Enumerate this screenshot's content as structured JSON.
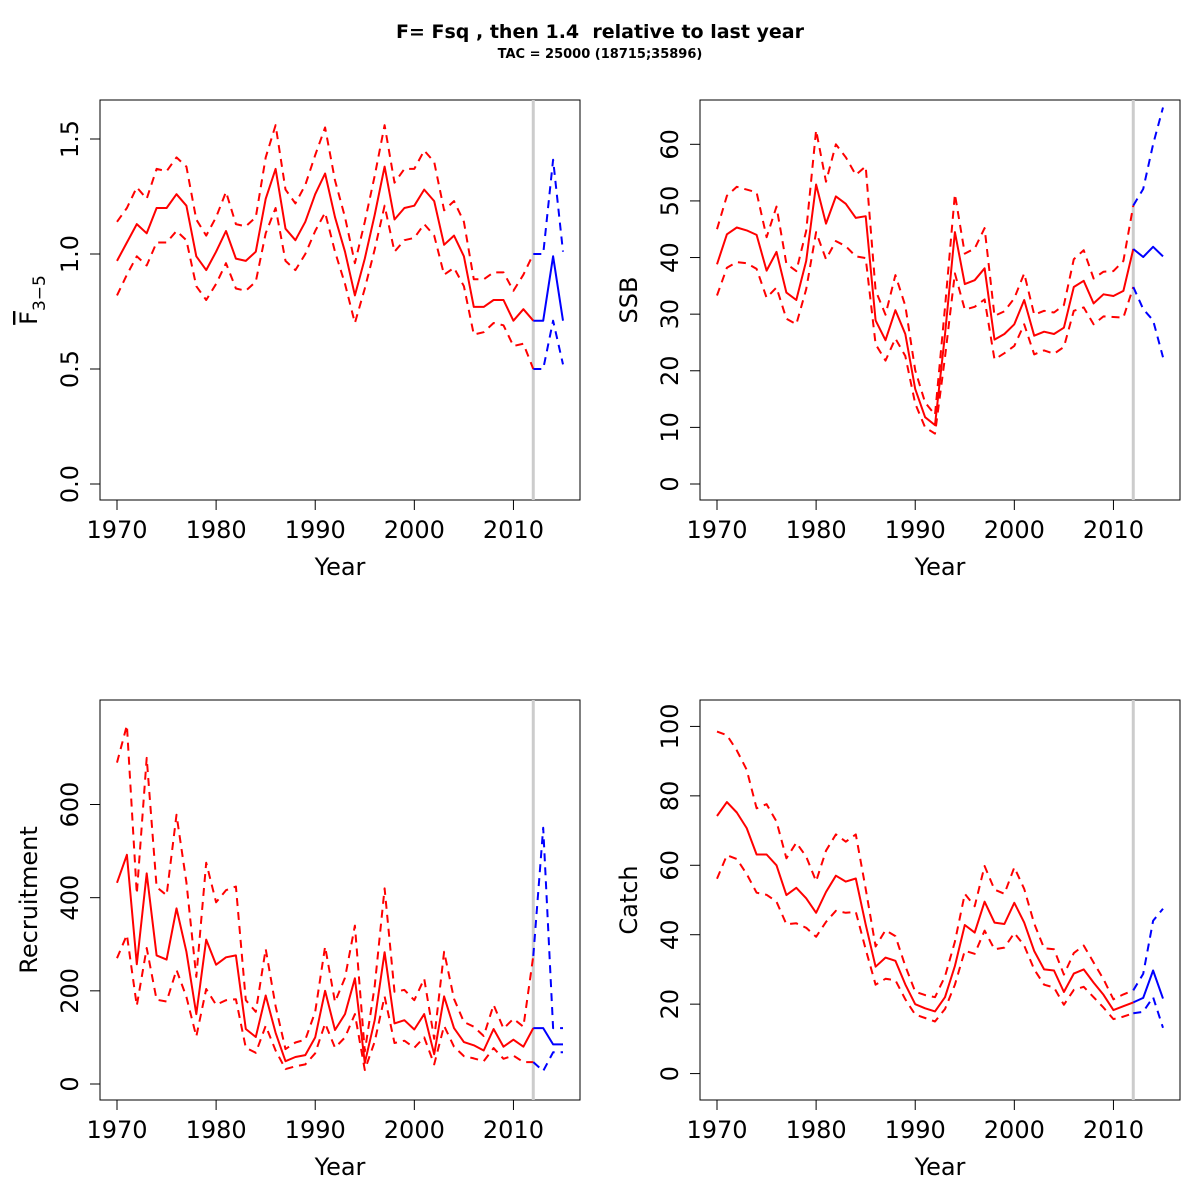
{
  "page": {
    "title": "F= Fsq , then 1.4  relative to last year",
    "subtitle": "TAC = 25000 (18715;35896)"
  },
  "style": {
    "historical_color": "#ff0000",
    "projection_color": "#0000ff",
    "reference_line_color": "#cccccc"
  },
  "chart_data": [
    {
      "type": "line",
      "panel": "top-left",
      "xlabel": "Year",
      "ylabel": "F̄3−5",
      "ylabel_main": "F",
      "ylabel_sub": "3−5",
      "xlim": [
        1970,
        2015
      ],
      "ylim": [
        0,
        1.6
      ],
      "x_ticks": [
        1970,
        1980,
        1990,
        2000,
        2010
      ],
      "x_tick_labels": [
        "1970",
        "1980",
        "1990",
        "2000",
        "2010"
      ],
      "y_ticks": [
        0,
        0.5,
        1.0,
        1.5
      ],
      "y_tick_labels": [
        "0.0",
        "0.5",
        "1.0",
        "1.5"
      ],
      "reference_year": 2012,
      "historical": {
        "x": [
          1970,
          1971,
          1972,
          1973,
          1974,
          1975,
          1976,
          1977,
          1978,
          1979,
          1980,
          1981,
          1982,
          1983,
          1984,
          1985,
          1986,
          1987,
          1988,
          1989,
          1990,
          1991,
          1992,
          1993,
          1994,
          1995,
          1996,
          1997,
          1998,
          1999,
          2000,
          2001,
          2002,
          2003,
          2004,
          2005,
          2006,
          2007,
          2008,
          2009,
          2010,
          2011,
          2012
        ],
        "estimate": [
          0.97,
          1.05,
          1.13,
          1.09,
          1.2,
          1.2,
          1.26,
          1.21,
          0.99,
          0.93,
          1.01,
          1.1,
          0.98,
          0.97,
          1.01,
          1.24,
          1.37,
          1.11,
          1.06,
          1.14,
          1.26,
          1.35,
          1.16,
          1.01,
          0.82,
          0.98,
          1.17,
          1.38,
          1.15,
          1.2,
          1.21,
          1.28,
          1.23,
          1.04,
          1.08,
          0.99,
          0.77,
          0.77,
          0.8,
          0.8,
          0.71,
          0.76,
          0.71
        ],
        "upper": [
          1.14,
          1.2,
          1.29,
          1.24,
          1.37,
          1.36,
          1.42,
          1.38,
          1.15,
          1.08,
          1.16,
          1.27,
          1.13,
          1.12,
          1.16,
          1.42,
          1.56,
          1.28,
          1.22,
          1.3,
          1.43,
          1.55,
          1.32,
          1.16,
          0.96,
          1.14,
          1.34,
          1.56,
          1.31,
          1.37,
          1.37,
          1.45,
          1.4,
          1.19,
          1.23,
          1.14,
          0.89,
          0.89,
          0.92,
          0.92,
          0.84,
          0.91,
          1.0
        ],
        "lower": [
          0.82,
          0.91,
          0.99,
          0.95,
          1.05,
          1.05,
          1.1,
          1.06,
          0.86,
          0.8,
          0.87,
          0.96,
          0.85,
          0.84,
          0.88,
          1.09,
          1.2,
          0.97,
          0.93,
          1.0,
          1.1,
          1.18,
          1.01,
          0.87,
          0.7,
          0.85,
          1.02,
          1.21,
          1.01,
          1.06,
          1.07,
          1.13,
          1.08,
          0.91,
          0.94,
          0.86,
          0.65,
          0.66,
          0.7,
          0.69,
          0.6,
          0.61,
          0.5
        ]
      },
      "projection": {
        "x": [
          2012,
          2013,
          2014,
          2015
        ],
        "estimate": [
          0.71,
          0.71,
          0.99,
          0.71
        ],
        "upper": [
          1.0,
          1.0,
          1.41,
          1.01
        ],
        "lower": [
          0.5,
          0.5,
          0.71,
          0.52
        ]
      }
    },
    {
      "type": "line",
      "panel": "top-right",
      "xlabel": "Year",
      "ylabel": "SSB",
      "xlim": [
        1970,
        2015
      ],
      "ylim": [
        0,
        65
      ],
      "x_ticks": [
        1970,
        1980,
        1990,
        2000,
        2010
      ],
      "x_tick_labels": [
        "1970",
        "1980",
        "1990",
        "2000",
        "2010"
      ],
      "y_ticks": [
        0,
        10,
        20,
        30,
        40,
        50,
        60
      ],
      "y_tick_labels": [
        "0",
        "10",
        "20",
        "30",
        "40",
        "50",
        "60"
      ],
      "reference_year": 2012,
      "historical": {
        "x": [
          1970,
          1971,
          1972,
          1973,
          1974,
          1975,
          1976,
          1977,
          1978,
          1979,
          1980,
          1981,
          1982,
          1983,
          1984,
          1985,
          1986,
          1987,
          1988,
          1989,
          1990,
          1991,
          1992,
          1993,
          1994,
          1995,
          1996,
          1997,
          1998,
          1999,
          2000,
          2001,
          2002,
          2003,
          2004,
          2005,
          2006,
          2007,
          2008,
          2009,
          2010,
          2011,
          2012
        ],
        "estimate": [
          38.8,
          44.1,
          45.3,
          44.8,
          44.0,
          37.7,
          41.0,
          33.8,
          32.5,
          39.4,
          52.9,
          46.0,
          50.8,
          49.5,
          47.0,
          47.3,
          28.9,
          25.4,
          30.7,
          26.5,
          16.8,
          11.8,
          10.4,
          26.4,
          44.5,
          35.3,
          36.0,
          38.1,
          25.5,
          26.5,
          28.2,
          32.5,
          26.2,
          26.9,
          26.5,
          27.6,
          34.8,
          35.9,
          31.9,
          33.5,
          33.2,
          34.1,
          41.5
        ],
        "upper": [
          45.0,
          50.9,
          52.5,
          52.0,
          51.5,
          43.6,
          49.0,
          38.9,
          37.6,
          44.7,
          62.5,
          53.4,
          60.0,
          57.7,
          54.6,
          56.1,
          34.2,
          29.9,
          36.9,
          31.5,
          20.1,
          14.4,
          12.2,
          31.2,
          51.2,
          40.7,
          41.6,
          45.2,
          29.7,
          30.5,
          32.8,
          37.2,
          29.9,
          30.6,
          30.3,
          31.6,
          39.7,
          41.3,
          36.3,
          37.5,
          37.6,
          39.4,
          49.2
        ],
        "lower": [
          33.3,
          38.2,
          39.2,
          39.0,
          38.0,
          32.9,
          34.7,
          29.2,
          28.2,
          34.4,
          44.5,
          39.7,
          42.9,
          42.0,
          40.2,
          39.9,
          24.7,
          21.8,
          25.7,
          22.6,
          14.2,
          10.0,
          8.9,
          22.4,
          37.2,
          30.8,
          31.3,
          32.6,
          22.0,
          23.1,
          24.4,
          28.2,
          22.9,
          23.6,
          23.0,
          24.2,
          30.6,
          31.2,
          28.2,
          29.6,
          29.5,
          29.4,
          34.8
        ]
      },
      "projection": {
        "x": [
          2012,
          2013,
          2014,
          2015
        ],
        "estimate": [
          41.5,
          40.1,
          41.9,
          40.2
        ],
        "upper": [
          49.2,
          52.1,
          60.0,
          66.5
        ],
        "lower": [
          34.8,
          30.9,
          28.9,
          22.4
        ]
      }
    },
    {
      "type": "line",
      "panel": "bottom-left",
      "xlabel": "Year",
      "ylabel": "Recruitment",
      "xlim": [
        1970,
        2015
      ],
      "ylim": [
        0,
        790
      ],
      "x_ticks": [
        1970,
        1980,
        1990,
        2000,
        2010
      ],
      "x_tick_labels": [
        "1970",
        "1980",
        "1990",
        "2000",
        "2010"
      ],
      "y_ticks": [
        0,
        200,
        400,
        600
      ],
      "y_tick_labels": [
        "0",
        "200",
        "400",
        "600"
      ],
      "reference_year": 2012,
      "historical": {
        "x": [
          1970,
          1971,
          1972,
          1973,
          1974,
          1975,
          1976,
          1977,
          1978,
          1979,
          1980,
          1981,
          1982,
          1983,
          1984,
          1985,
          1986,
          1987,
          1988,
          1989,
          1990,
          1991,
          1992,
          1993,
          1994,
          1995,
          1996,
          1997,
          1998,
          1999,
          2000,
          2001,
          2002,
          2003,
          2004,
          2005,
          2006,
          2007,
          2008,
          2009,
          2010,
          2011,
          2012
        ],
        "estimate": [
          432,
          492,
          257,
          452,
          276,
          267,
          377,
          284,
          150,
          310,
          256,
          272,
          276,
          118,
          101,
          190,
          110,
          49,
          58,
          62,
          100,
          200,
          116,
          150,
          227,
          45,
          137,
          283,
          130,
          137,
          117,
          150,
          64,
          188,
          120,
          90,
          83,
          72,
          118,
          80,
          95,
          80,
          120
        ],
        "upper": [
          690,
          770,
          408,
          700,
          423,
          405,
          578,
          433,
          230,
          475,
          390,
          416,
          424,
          180,
          155,
          290,
          167,
          75,
          89,
          95,
          155,
          295,
          176,
          228,
          340,
          70,
          210,
          420,
          198,
          202,
          180,
          226,
          97,
          284,
          183,
          133,
          123,
          103,
          170,
          119,
          140,
          123,
          275
        ],
        "lower": [
          270,
          320,
          168,
          292,
          181,
          177,
          245,
          187,
          102,
          204,
          170,
          180,
          182,
          78,
          67,
          125,
          72,
          32,
          38,
          42,
          66,
          130,
          78,
          100,
          150,
          30,
          91,
          188,
          88,
          93,
          78,
          100,
          42,
          125,
          80,
          60,
          55,
          49,
          77,
          54,
          61,
          47,
          47
        ]
      },
      "projection": {
        "x": [
          2012,
          2013,
          2014,
          2015
        ],
        "estimate": [
          120,
          120,
          85,
          85
        ],
        "upper": [
          275,
          550,
          120,
          120
        ],
        "lower": [
          47,
          28,
          68,
          68
        ]
      }
    },
    {
      "type": "line",
      "panel": "bottom-right",
      "xlabel": "Year",
      "ylabel": "Catch",
      "xlim": [
        1970,
        2015
      ],
      "ylim": [
        -3,
        103
      ],
      "x_ticks": [
        1970,
        1980,
        1990,
        2000,
        2010
      ],
      "x_tick_labels": [
        "1970",
        "1980",
        "1990",
        "2000",
        "2010"
      ],
      "y_ticks": [
        0,
        20,
        40,
        60,
        80,
        100
      ],
      "y_tick_labels": [
        "0",
        "20",
        "40",
        "60",
        "80",
        "100"
      ],
      "reference_year": 2012,
      "historical": {
        "x": [
          1970,
          1971,
          1972,
          1973,
          1974,
          1975,
          1976,
          1977,
          1978,
          1979,
          1980,
          1981,
          1982,
          1983,
          1984,
          1985,
          1986,
          1987,
          1988,
          1989,
          1990,
          1991,
          1992,
          1993,
          1994,
          1995,
          1996,
          1997,
          1998,
          1999,
          2000,
          2001,
          2002,
          2003,
          2004,
          2005,
          2006,
          2007,
          2008,
          2009,
          2010,
          2011,
          2012
        ],
        "estimate": [
          74.2,
          78.2,
          75.2,
          70.7,
          63.1,
          63.1,
          60.0,
          51.4,
          53.5,
          50.5,
          46.3,
          52.3,
          57.0,
          55.3,
          56.2,
          42.9,
          30.8,
          33.4,
          32.5,
          25.7,
          20.0,
          18.8,
          17.9,
          22.0,
          31.0,
          42.8,
          40.6,
          49.5,
          43.5,
          43.1,
          49.2,
          43.5,
          35.3,
          30.0,
          29.7,
          23.5,
          28.8,
          30.0,
          26.2,
          22.7,
          18.3,
          19.4,
          20.5
        ],
        "upper": [
          98.5,
          97.5,
          93.1,
          87.5,
          76.4,
          77.6,
          72.6,
          62.0,
          66.5,
          62.5,
          55.4,
          64.2,
          68.9,
          66.8,
          68.9,
          53.2,
          36.6,
          41.3,
          39.6,
          31.0,
          23.6,
          22.6,
          22.0,
          28.0,
          38.0,
          51.8,
          48.2,
          59.8,
          53.0,
          51.8,
          59.4,
          53.2,
          43.2,
          36.1,
          35.8,
          28.5,
          34.7,
          36.9,
          32.0,
          27.2,
          21.4,
          22.8,
          24.0
        ],
        "lower": [
          56.1,
          62.9,
          61.8,
          57.5,
          52.1,
          51.5,
          49.5,
          43.0,
          43.3,
          42.0,
          39.4,
          43.7,
          46.9,
          46.3,
          46.6,
          35.8,
          25.6,
          27.3,
          26.9,
          21.4,
          17.0,
          16.0,
          15.0,
          18.6,
          25.6,
          35.4,
          34.5,
          41.2,
          35.8,
          36.3,
          40.5,
          36.9,
          30.0,
          25.6,
          24.8,
          19.8,
          24.1,
          25.0,
          22.0,
          19.0,
          15.7,
          16.4,
          17.4
        ]
      },
      "projection": {
        "x": [
          2012,
          2013,
          2014,
          2015
        ],
        "estimate": [
          20.5,
          21.8,
          29.7,
          21.6
        ],
        "upper": [
          24.0,
          28.7,
          44.0,
          47.5
        ],
        "lower": [
          17.4,
          17.8,
          22.0,
          13.2
        ]
      }
    }
  ]
}
